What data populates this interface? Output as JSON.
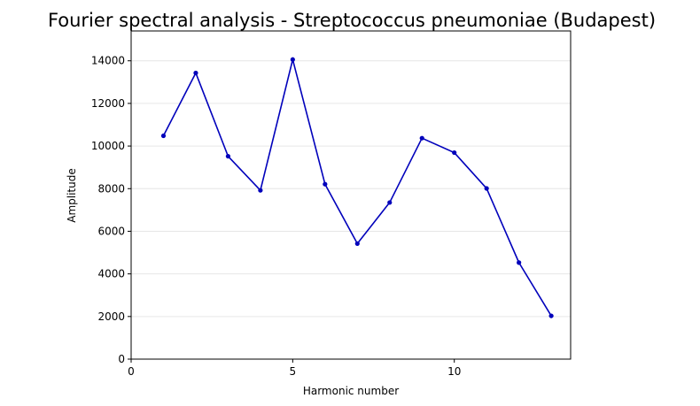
{
  "chart_data": {
    "type": "line",
    "title": "Fourier spectral analysis - Streptococcus pneumoniae (Budapest)",
    "xlabel": "Harmonic number",
    "ylabel": "Amplitude",
    "xlim": [
      0,
      13.6
    ],
    "ylim": [
      0,
      15400
    ],
    "xticks": [
      0,
      5,
      10
    ],
    "yticks": [
      0,
      2000,
      4000,
      6000,
      8000,
      10000,
      12000,
      14000
    ],
    "grid": "horizontal",
    "series": [
      {
        "color": "#0000bb",
        "x": [
          1,
          2,
          3,
          4,
          5,
          6,
          7,
          8,
          9,
          10,
          11,
          12,
          13
        ],
        "y": [
          10480,
          13430,
          9520,
          7920,
          14060,
          8210,
          5420,
          7350,
          10370,
          9690,
          8010,
          4530,
          2030
        ]
      }
    ]
  }
}
